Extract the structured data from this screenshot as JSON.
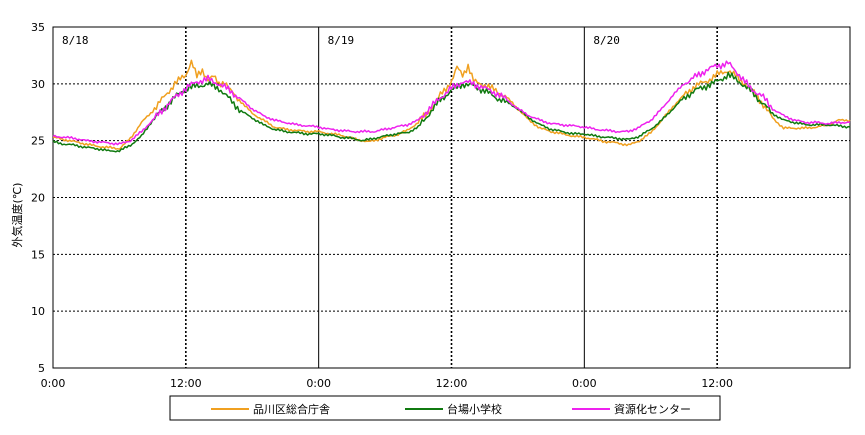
{
  "chart_data": {
    "type": "line",
    "title": "",
    "xlabel": "",
    "ylabel": "外気温度(℃)",
    "ylim": [
      5,
      35
    ],
    "yticks": [
      "5",
      "10",
      "15",
      "20",
      "25",
      "30",
      "35"
    ],
    "xlim": [
      0,
      72
    ],
    "xticks": [
      {
        "hour": 0,
        "label": "0:00"
      },
      {
        "hour": 12,
        "label": "12:00"
      },
      {
        "hour": 24,
        "label": "0:00"
      },
      {
        "hour": 36,
        "label": "12:00"
      },
      {
        "hour": 48,
        "label": "0:00"
      },
      {
        "hour": 60,
        "label": "12:00"
      }
    ],
    "day_labels": [
      {
        "hour": 0,
        "label": "8/18"
      },
      {
        "hour": 24,
        "label": "8/19"
      },
      {
        "hour": 48,
        "label": "8/20"
      }
    ],
    "grid": "dotted",
    "legend": "bottom",
    "series": [
      {
        "name": "品川区総合庁舎",
        "color": "#F0A020",
        "points": [
          [
            0,
            25.3
          ],
          [
            1,
            25.1
          ],
          [
            2,
            24.9
          ],
          [
            3,
            24.7
          ],
          [
            4,
            24.5
          ],
          [
            5,
            24.4
          ],
          [
            6,
            24.3
          ],
          [
            7,
            25.2
          ],
          [
            8,
            26.6
          ],
          [
            9,
            27.6
          ],
          [
            10,
            28.8
          ],
          [
            11,
            30.0
          ],
          [
            12,
            30.8
          ],
          [
            12.5,
            32.0
          ],
          [
            13,
            30.6
          ],
          [
            13.5,
            31.2
          ],
          [
            14,
            30.4
          ],
          [
            14.5,
            30.6
          ],
          [
            15,
            30.0
          ],
          [
            15.5,
            30.2
          ],
          [
            16,
            29.4
          ],
          [
            17,
            28.4
          ],
          [
            18,
            27.4
          ],
          [
            19,
            26.8
          ],
          [
            20,
            26.2
          ],
          [
            21,
            26.0
          ],
          [
            22,
            25.9
          ],
          [
            23,
            25.8
          ],
          [
            24,
            25.8
          ],
          [
            25,
            25.6
          ],
          [
            26,
            25.5
          ],
          [
            27,
            25.2
          ],
          [
            28,
            25.0
          ],
          [
            28.5,
            24.9
          ],
          [
            29,
            25.0
          ],
          [
            30,
            25.3
          ],
          [
            31,
            25.5
          ],
          [
            32,
            25.9
          ],
          [
            33,
            26.6
          ],
          [
            34,
            27.6
          ],
          [
            35,
            29.0
          ],
          [
            36,
            30.2
          ],
          [
            36.5,
            31.4
          ],
          [
            37,
            30.8
          ],
          [
            37.5,
            31.6
          ],
          [
            38,
            30.2
          ],
          [
            39,
            29.9
          ],
          [
            40,
            29.4
          ],
          [
            41,
            28.8
          ],
          [
            42,
            27.8
          ],
          [
            43,
            26.8
          ],
          [
            44,
            26.1
          ],
          [
            45,
            25.8
          ],
          [
            46,
            25.6
          ],
          [
            47,
            25.4
          ],
          [
            48,
            25.3
          ],
          [
            49,
            25.1
          ],
          [
            50,
            24.9
          ],
          [
            51,
            24.8
          ],
          [
            52,
            24.6
          ],
          [
            53,
            25.0
          ],
          [
            54,
            25.7
          ],
          [
            55,
            26.8
          ],
          [
            56,
            28.0
          ],
          [
            57,
            29.0
          ],
          [
            58,
            29.8
          ],
          [
            59,
            30.2
          ],
          [
            60,
            30.8
          ],
          [
            61,
            31.2
          ],
          [
            62,
            30.4
          ],
          [
            63,
            29.6
          ],
          [
            64,
            28.4
          ],
          [
            65,
            27.0
          ],
          [
            66,
            26.1
          ],
          [
            67,
            26.1
          ],
          [
            68,
            26.1
          ],
          [
            69,
            26.2
          ],
          [
            70,
            26.4
          ],
          [
            71,
            26.8
          ],
          [
            72,
            26.8
          ]
        ]
      },
      {
        "name": "台場小学校",
        "color": "#107A10",
        "points": [
          [
            0,
            24.9
          ],
          [
            1,
            24.7
          ],
          [
            2,
            24.6
          ],
          [
            3,
            24.4
          ],
          [
            4,
            24.3
          ],
          [
            5,
            24.1
          ],
          [
            6,
            24.1
          ],
          [
            7,
            24.6
          ],
          [
            8,
            25.4
          ],
          [
            9,
            26.8
          ],
          [
            10,
            27.8
          ],
          [
            11,
            28.8
          ],
          [
            12,
            29.6
          ],
          [
            13,
            29.8
          ],
          [
            14,
            30.0
          ],
          [
            15,
            29.6
          ],
          [
            16,
            28.6
          ],
          [
            17,
            27.6
          ],
          [
            18,
            27.0
          ],
          [
            19,
            26.4
          ],
          [
            20,
            26.0
          ],
          [
            21,
            25.8
          ],
          [
            22,
            25.7
          ],
          [
            23,
            25.6
          ],
          [
            24,
            25.6
          ],
          [
            25,
            25.5
          ],
          [
            26,
            25.3
          ],
          [
            27,
            25.2
          ],
          [
            28,
            25.0
          ],
          [
            29,
            25.2
          ],
          [
            30,
            25.4
          ],
          [
            31,
            25.6
          ],
          [
            32,
            25.7
          ],
          [
            33,
            26.2
          ],
          [
            34,
            27.4
          ],
          [
            35,
            28.6
          ],
          [
            36,
            29.4
          ],
          [
            37,
            30.0
          ],
          [
            38,
            29.8
          ],
          [
            39,
            29.4
          ],
          [
            40,
            28.8
          ],
          [
            41,
            28.4
          ],
          [
            42,
            27.8
          ],
          [
            43,
            27.0
          ],
          [
            44,
            26.4
          ],
          [
            45,
            26.0
          ],
          [
            46,
            25.8
          ],
          [
            47,
            25.6
          ],
          [
            48,
            25.6
          ],
          [
            49,
            25.4
          ],
          [
            50,
            25.3
          ],
          [
            51,
            25.2
          ],
          [
            52,
            25.1
          ],
          [
            53,
            25.4
          ],
          [
            54,
            26.0
          ],
          [
            55,
            26.8
          ],
          [
            56,
            27.8
          ],
          [
            57,
            28.8
          ],
          [
            58,
            29.4
          ],
          [
            59,
            29.8
          ],
          [
            60,
            30.2
          ],
          [
            61,
            30.8
          ],
          [
            62,
            30.2
          ],
          [
            63,
            29.4
          ],
          [
            64,
            28.4
          ],
          [
            65,
            27.4
          ],
          [
            66,
            26.8
          ],
          [
            67,
            26.6
          ],
          [
            68,
            26.4
          ],
          [
            69,
            26.4
          ],
          [
            70,
            26.4
          ],
          [
            71,
            26.3
          ],
          [
            72,
            26.2
          ]
        ]
      },
      {
        "name": "資源化センター",
        "color": "#EE22EE",
        "points": [
          [
            0,
            25.4
          ],
          [
            1,
            25.3
          ],
          [
            2,
            25.2
          ],
          [
            3,
            25.0
          ],
          [
            4,
            24.9
          ],
          [
            5,
            24.8
          ],
          [
            6,
            24.7
          ],
          [
            7,
            25.0
          ],
          [
            8,
            25.8
          ],
          [
            9,
            26.8
          ],
          [
            10,
            27.8
          ],
          [
            11,
            28.8
          ],
          [
            12,
            29.6
          ],
          [
            13,
            30.2
          ],
          [
            14,
            30.4
          ],
          [
            15,
            30.0
          ],
          [
            16,
            29.4
          ],
          [
            17,
            28.6
          ],
          [
            18,
            27.8
          ],
          [
            19,
            27.2
          ],
          [
            20,
            26.8
          ],
          [
            21,
            26.6
          ],
          [
            22,
            26.4
          ],
          [
            23,
            26.3
          ],
          [
            24,
            26.2
          ],
          [
            25,
            26.0
          ],
          [
            26,
            25.9
          ],
          [
            27,
            25.8
          ],
          [
            28,
            25.8
          ],
          [
            29,
            25.8
          ],
          [
            30,
            26.0
          ],
          [
            31,
            26.2
          ],
          [
            32,
            26.4
          ],
          [
            33,
            26.8
          ],
          [
            34,
            27.8
          ],
          [
            35,
            28.8
          ],
          [
            36,
            29.6
          ],
          [
            37,
            30.2
          ],
          [
            38,
            30.0
          ],
          [
            39,
            29.6
          ],
          [
            40,
            29.2
          ],
          [
            41,
            28.6
          ],
          [
            42,
            27.8
          ],
          [
            43,
            27.2
          ],
          [
            44,
            26.8
          ],
          [
            45,
            26.5
          ],
          [
            46,
            26.4
          ],
          [
            47,
            26.3
          ],
          [
            48,
            26.2
          ],
          [
            49,
            26.0
          ],
          [
            50,
            25.9
          ],
          [
            51,
            25.8
          ],
          [
            52,
            25.8
          ],
          [
            53,
            26.2
          ],
          [
            54,
            26.8
          ],
          [
            55,
            27.8
          ],
          [
            56,
            29.0
          ],
          [
            57,
            30.0
          ],
          [
            58,
            30.6
          ],
          [
            59,
            31.2
          ],
          [
            60,
            31.6
          ],
          [
            61,
            31.8
          ],
          [
            62,
            30.8
          ],
          [
            63,
            29.6
          ],
          [
            64,
            29.0
          ],
          [
            65,
            27.8
          ],
          [
            66,
            27.2
          ],
          [
            67,
            26.8
          ],
          [
            68,
            26.6
          ],
          [
            69,
            26.6
          ],
          [
            70,
            26.5
          ],
          [
            71,
            26.6
          ],
          [
            72,
            26.6
          ]
        ]
      }
    ]
  },
  "legend_labels": {
    "s0": "品川区総合庁舎",
    "s1": "台場小学校",
    "s2": "資源化センター"
  }
}
